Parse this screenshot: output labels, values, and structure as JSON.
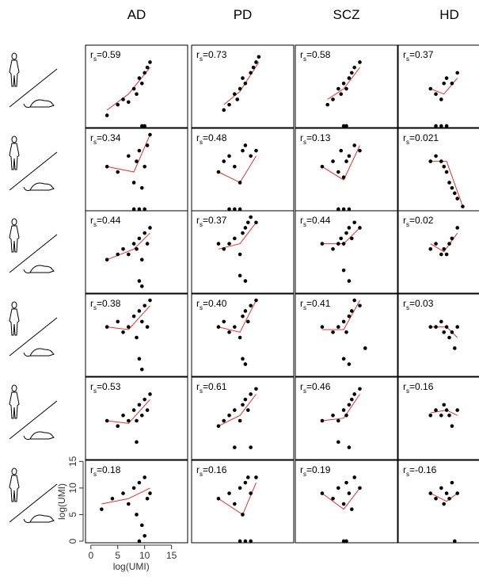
{
  "chart_data": {
    "type": "scatter",
    "columns": [
      "AD",
      "PD",
      "SCZ",
      "HD"
    ],
    "x_label": "log(UMI)",
    "y_label": "log(UMI)",
    "xlim": [
      -1,
      18
    ],
    "ylim": [
      -0.3,
      15.2
    ],
    "xticks": [
      0,
      5,
      10,
      15
    ],
    "yticks": [
      0,
      5,
      10,
      15
    ],
    "stat_symbol": "r",
    "stat_subscript": "s",
    "point_color": "#000000",
    "fit_color": "#e8302a",
    "panels": [
      [
        {
          "stat_label": "=0.59",
          "x": [
            3,
            5,
            6,
            7,
            8,
            8.5,
            9,
            9.5,
            10,
            10.5,
            11,
            9.5,
            10
          ],
          "y": [
            2,
            4,
            5,
            4.5,
            7,
            6,
            9,
            8,
            10,
            11,
            12,
            0,
            0
          ],
          "fit_x": [
            3,
            7,
            11
          ],
          "fit_y": [
            3,
            6,
            11
          ]
        },
        {
          "stat_label": "=0.73",
          "x": [
            5,
            6,
            7,
            7.5,
            8,
            8.5,
            9,
            10,
            10.5,
            11,
            11.5
          ],
          "y": [
            3,
            4,
            6,
            5,
            7,
            9,
            8,
            10,
            11,
            12,
            13
          ],
          "fit_x": [
            5,
            8,
            11.5
          ],
          "fit_y": [
            4,
            6.5,
            12
          ]
        },
        {
          "stat_label": "=0.58",
          "x": [
            5,
            6,
            7,
            7.5,
            8,
            8.5,
            9,
            9.5,
            10,
            11,
            8,
            8.5
          ],
          "y": [
            4,
            5,
            7,
            6,
            8,
            7,
            9,
            10,
            11,
            12,
            0,
            0
          ],
          "fit_x": [
            5,
            8,
            11
          ],
          "fit_y": [
            5,
            7,
            11
          ]
        },
        {
          "stat_label": "=0.37",
          "x": [
            5,
            6,
            7,
            7.5,
            8,
            9,
            10,
            6,
            7,
            8
          ],
          "y": [
            7,
            6,
            5,
            8,
            9,
            8,
            10,
            0,
            0,
            0
          ],
          "fit_x": [
            5,
            7.5,
            10
          ],
          "fit_y": [
            7,
            6,
            9
          ]
        }
      ],
      [
        {
          "stat_label": "=0.34",
          "x": [
            3,
            5,
            7,
            8,
            8.5,
            9,
            9.5,
            10,
            10.5,
            11,
            8,
            9,
            10
          ],
          "y": [
            8,
            7,
            10,
            5,
            9,
            11,
            4,
            8,
            12,
            14,
            0,
            0,
            0
          ],
          "fit_x": [
            3,
            8,
            11
          ],
          "fit_y": [
            8,
            7,
            14
          ]
        },
        {
          "stat_label": "=0.48",
          "x": [
            4,
            5,
            6,
            7,
            8,
            8.5,
            9,
            10,
            11,
            6,
            7,
            8
          ],
          "y": [
            7,
            9,
            10,
            8,
            5,
            11,
            12,
            10,
            11,
            0,
            0,
            0
          ],
          "fit_x": [
            4,
            8,
            11
          ],
          "fit_y": [
            7,
            5,
            10
          ]
        },
        {
          "stat_label": "=0.13",
          "x": [
            4,
            6,
            7,
            7.5,
            8,
            8.5,
            9,
            10,
            11,
            7,
            8,
            9
          ],
          "y": [
            8,
            9,
            7,
            11,
            6,
            9,
            10,
            12,
            11,
            0,
            0,
            0
          ],
          "fit_x": [
            4,
            8,
            11
          ],
          "fit_y": [
            8,
            5.5,
            12
          ]
        },
        {
          "stat_label": "=0.021",
          "x": [
            5,
            6,
            7,
            7.5,
            8,
            8.5,
            9,
            9.5,
            10,
            11
          ],
          "y": [
            9,
            10,
            9,
            8,
            7,
            5,
            4,
            3,
            2,
            0.5
          ],
          "fit_x": [
            5,
            8,
            11
          ],
          "fit_y": [
            9,
            9,
            0.5
          ]
        }
      ],
      [
        {
          "stat_label": "=0.44",
          "x": [
            3,
            5,
            6,
            7,
            8,
            8.5,
            9,
            9.5,
            10,
            10.5,
            11,
            9,
            9.5
          ],
          "y": [
            6,
            7,
            8,
            7,
            9,
            8,
            10,
            6,
            11,
            9,
            12,
            2,
            1
          ],
          "fit_x": [
            3,
            8,
            11
          ],
          "fit_y": [
            6,
            8,
            11
          ]
        },
        {
          "stat_label": "=0.37",
          "x": [
            4,
            5,
            6,
            7,
            8,
            8.5,
            9,
            9.5,
            10,
            11,
            8,
            9
          ],
          "y": [
            9,
            8,
            9,
            10,
            7,
            11,
            12,
            13,
            14,
            13,
            3,
            2
          ],
          "fit_x": [
            4,
            8,
            11
          ],
          "fit_y": [
            8,
            9,
            13
          ]
        },
        {
          "stat_label": "=0.44",
          "x": [
            4,
            6,
            7,
            7.5,
            8,
            8.5,
            9,
            9.5,
            10,
            11,
            8,
            9
          ],
          "y": [
            9,
            8,
            9,
            10,
            9,
            11,
            12,
            10,
            13,
            12,
            4,
            2
          ],
          "fit_x": [
            4,
            8,
            11
          ],
          "fit_y": [
            9,
            9,
            12
          ]
        },
        {
          "stat_label": "=0.02",
          "x": [
            5,
            6,
            7,
            7.5,
            8,
            8.5,
            9,
            10
          ],
          "y": [
            8,
            9,
            7,
            8,
            7,
            9,
            10,
            12
          ],
          "fit_x": [
            5,
            7.5,
            10
          ],
          "fit_y": [
            9,
            7.5,
            11
          ]
        }
      ],
      [
        {
          "stat_label": "=0.38",
          "x": [
            3,
            5,
            6,
            7,
            8,
            8.5,
            9,
            9.5,
            10,
            10.5,
            11,
            9,
            9.5
          ],
          "y": [
            9,
            10,
            8,
            9,
            11,
            7,
            12,
            10,
            13,
            9,
            14,
            3,
            1
          ],
          "fit_x": [
            3,
            7,
            11
          ],
          "fit_y": [
            9,
            8.5,
            13
          ]
        },
        {
          "stat_label": "=0.40",
          "x": [
            4,
            5,
            6,
            7,
            8,
            8.5,
            9,
            9.5,
            10,
            11,
            8.5,
            9
          ],
          "y": [
            9,
            10,
            8,
            9,
            7,
            11,
            12,
            10,
            13,
            14,
            3,
            2
          ],
          "fit_x": [
            4,
            8,
            11
          ],
          "fit_y": [
            9,
            8,
            14
          ]
        },
        {
          "stat_label": "=0.41",
          "x": [
            4,
            6,
            7,
            8,
            8.5,
            9,
            9.5,
            10,
            11,
            12,
            8,
            9
          ],
          "y": [
            9,
            8,
            9,
            10,
            8,
            11,
            12,
            14,
            13,
            5,
            3,
            2
          ],
          "fit_x": [
            4,
            8,
            11
          ],
          "fit_y": [
            8.5,
            8.5,
            14
          ]
        },
        {
          "stat_label": "=0.03",
          "x": [
            5,
            6,
            7,
            7.5,
            8,
            8.5,
            9,
            10,
            9.5
          ],
          "y": [
            9,
            9,
            10,
            8,
            9,
            7,
            8,
            9,
            5
          ],
          "fit_x": [
            5,
            8,
            10
          ],
          "fit_y": [
            9,
            9,
            7
          ]
        }
      ],
      [
        {
          "stat_label": "=0.53",
          "x": [
            3,
            5,
            6,
            7,
            8,
            8.5,
            9,
            9.5,
            10,
            10.5,
            11,
            8.5
          ],
          "y": [
            7,
            6,
            8,
            7,
            9,
            7,
            10,
            8,
            11,
            9,
            12,
            3
          ],
          "fit_x": [
            3,
            7,
            11
          ],
          "fit_y": [
            7,
            6.5,
            11
          ]
        },
        {
          "stat_label": "=0.61",
          "x": [
            4,
            5,
            6,
            7,
            8,
            8.5,
            9,
            9.5,
            10,
            11,
            7,
            10
          ],
          "y": [
            6,
            7,
            8,
            9,
            7,
            10,
            11,
            9,
            12,
            13,
            2,
            2
          ],
          "fit_x": [
            4,
            8,
            11
          ],
          "fit_y": [
            6,
            8,
            12
          ]
        },
        {
          "stat_label": "=0.46",
          "x": [
            4,
            6,
            7,
            8,
            8.5,
            9,
            9.5,
            10,
            11,
            7,
            9
          ],
          "y": [
            7,
            8,
            7,
            9,
            8,
            10,
            11,
            12,
            13,
            3,
            2
          ],
          "fit_x": [
            4,
            8,
            11
          ],
          "fit_y": [
            7,
            7.5,
            12
          ]
        },
        {
          "stat_label": "=0.16",
          "x": [
            5,
            6,
            7,
            7.5,
            8,
            8.5,
            9,
            10
          ],
          "y": [
            8,
            9,
            8,
            10,
            9,
            8,
            6,
            9
          ],
          "fit_x": [
            5,
            8,
            10
          ],
          "fit_y": [
            8.5,
            9,
            8
          ]
        }
      ],
      [
        {
          "stat_label": "=0.18",
          "x": [
            2,
            4,
            6,
            7,
            8,
            8.5,
            9,
            9.5,
            10,
            10.5,
            11,
            9,
            10
          ],
          "y": [
            6,
            8,
            9,
            7,
            10,
            5,
            11,
            3,
            12,
            8,
            9,
            0,
            1
          ],
          "fit_x": [
            2,
            7,
            11
          ],
          "fit_y": [
            7,
            8,
            10
          ]
        },
        {
          "stat_label": "=0.16",
          "x": [
            4,
            6,
            7,
            8,
            8.5,
            9,
            9.5,
            10,
            11,
            8,
            9,
            10
          ],
          "y": [
            8,
            9,
            7,
            10,
            5,
            11,
            12,
            9,
            12,
            0,
            0,
            0
          ],
          "fit_x": [
            4,
            8.5,
            11
          ],
          "fit_y": [
            8,
            5,
            11
          ]
        },
        {
          "stat_label": "=0.19",
          "x": [
            4,
            6,
            7,
            8,
            8.5,
            9,
            9.5,
            10,
            11,
            8,
            8.5
          ],
          "y": [
            9,
            8,
            10,
            7,
            11,
            9,
            6,
            12,
            10,
            0,
            0
          ],
          "fit_x": [
            4,
            8,
            11
          ],
          "fit_y": [
            9,
            6,
            10
          ]
        },
        {
          "stat_label": "=-0.16",
          "x": [
            5,
            6,
            7,
            7.5,
            8,
            8.5,
            9,
            10,
            9.5
          ],
          "y": [
            9,
            8,
            10,
            7,
            9,
            8,
            11,
            9,
            0
          ],
          "fit_x": [
            5,
            8,
            10
          ],
          "fit_y": [
            9,
            7.5,
            9
          ]
        }
      ]
    ]
  }
}
